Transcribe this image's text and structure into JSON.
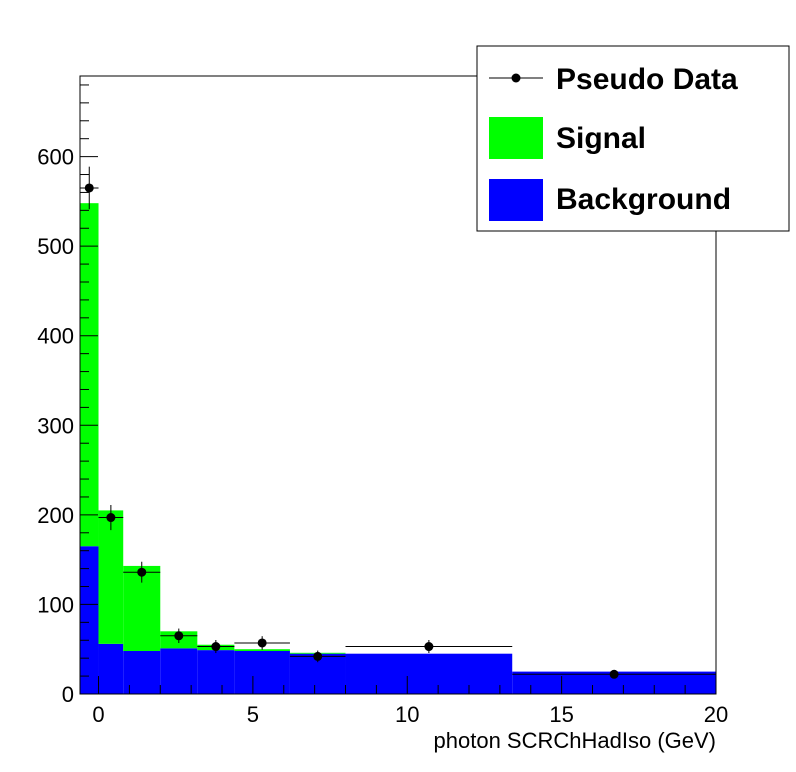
{
  "chart_data": {
    "type": "bar",
    "title": "",
    "xlabel": "photon SCRChHadIso (GeV)",
    "ylabel": "",
    "xlim": [
      -0.6,
      20
    ],
    "ylim": [
      0,
      690
    ],
    "grid": false,
    "legend_position": "top-right",
    "x_ticks": [
      0,
      5,
      10,
      15,
      20
    ],
    "y_ticks": [
      0,
      100,
      200,
      300,
      400,
      500,
      600
    ],
    "bins": [
      {
        "low": -0.6,
        "high": 0.0,
        "signal": 383,
        "background": 165,
        "data": 565,
        "data_x": -0.3
      },
      {
        "low": 0.0,
        "high": 0.8,
        "signal": 149,
        "background": 56,
        "data": 197,
        "data_x": 0.4
      },
      {
        "low": 0.8,
        "high": 2.0,
        "signal": 95,
        "background": 48,
        "data": 136,
        "data_x": 1.4
      },
      {
        "low": 2.0,
        "high": 3.2,
        "signal": 19,
        "background": 51,
        "data": 65,
        "data_x": 2.6
      },
      {
        "low": 3.2,
        "high": 4.4,
        "signal": 6,
        "background": 49,
        "data": 53,
        "data_x": 3.8
      },
      {
        "low": 4.4,
        "high": 6.2,
        "signal": 2,
        "background": 48,
        "data": 57,
        "data_x": 5.3
      },
      {
        "low": 6.2,
        "high": 8.0,
        "signal": 1,
        "background": 45,
        "data": 42,
        "data_x": 7.1
      },
      {
        "low": 8.0,
        "high": 13.4,
        "signal": 0,
        "background": 45,
        "data": 53,
        "data_x": 10.7
      },
      {
        "low": 13.4,
        "high": 20.0,
        "signal": 0,
        "background": 25,
        "data": 22,
        "data_x": 16.7
      }
    ],
    "series": [
      {
        "name": "Pseudo Data",
        "style": "points",
        "color": "#000000"
      },
      {
        "name": "Signal",
        "style": "stacked-bar",
        "color": "#00ff00"
      },
      {
        "name": "Background",
        "style": "stacked-bar",
        "color": "#0000ff"
      }
    ]
  }
}
